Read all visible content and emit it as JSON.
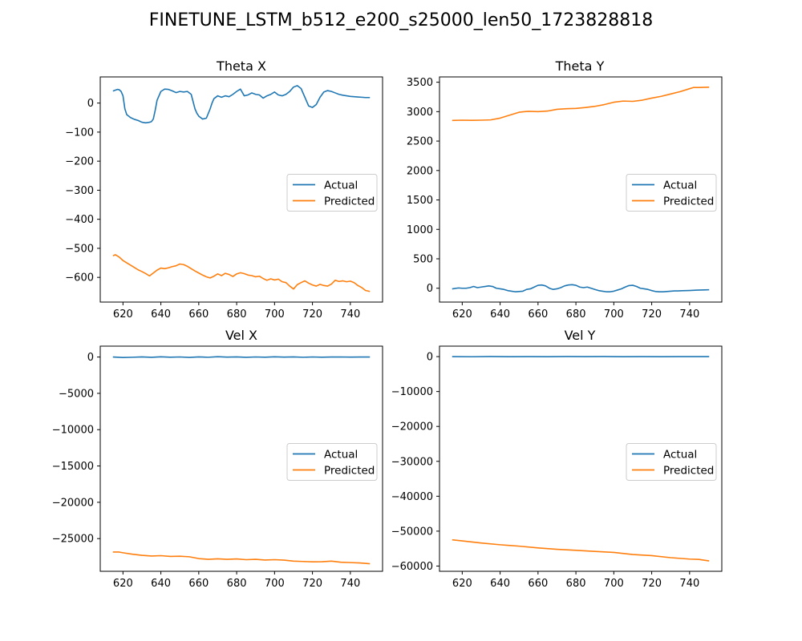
{
  "figure": {
    "suptitle": "FINETUNE_LSTM_b512_e200_s25000_len50_1723828818"
  },
  "colors": {
    "actual": "#1f77b4",
    "predicted": "#ff7f0e",
    "axes": "#000000",
    "legend_border": "#cccccc"
  },
  "chart_data": [
    {
      "type": "line",
      "title": "Theta X",
      "xlim": [
        608,
        757
      ],
      "ylim": [
        -685,
        90
      ],
      "xticks": [
        620,
        640,
        660,
        680,
        700,
        720,
        740
      ],
      "yticks": [
        0,
        -100,
        -200,
        -300,
        -400,
        -500,
        -600
      ],
      "ytick_labels": [
        "0",
        "−100",
        "−200",
        "−300",
        "−400",
        "−500",
        "−600"
      ],
      "legend": {
        "placement": "center-right",
        "entries": [
          "Actual",
          "Predicted"
        ]
      },
      "series": [
        {
          "name": "Actual",
          "x": [
            615,
            617,
            618,
            619,
            620,
            621,
            622,
            624,
            626,
            628,
            630,
            632,
            634,
            635,
            636,
            637,
            638,
            640,
            642,
            644,
            646,
            648,
            650,
            652,
            654,
            656,
            658,
            659,
            660,
            662,
            664,
            666,
            667,
            668,
            670,
            672,
            674,
            676,
            678,
            680,
            682,
            684,
            686,
            688,
            690,
            692,
            694,
            696,
            698,
            700,
            702,
            704,
            706,
            708,
            710,
            712,
            714,
            716,
            718,
            720,
            722,
            724,
            726,
            728,
            730,
            732,
            734,
            736,
            738,
            740,
            742,
            744,
            746,
            748,
            750
          ],
          "y": [
            42,
            47,
            46,
            40,
            25,
            -20,
            -40,
            -50,
            -56,
            -60,
            -66,
            -68,
            -66,
            -64,
            -55,
            -25,
            10,
            40,
            48,
            47,
            42,
            36,
            40,
            38,
            40,
            30,
            -20,
            -35,
            -45,
            -55,
            -52,
            -20,
            0,
            15,
            25,
            20,
            25,
            22,
            30,
            40,
            48,
            25,
            28,
            35,
            30,
            28,
            17,
            25,
            30,
            38,
            28,
            25,
            30,
            40,
            55,
            60,
            50,
            20,
            -10,
            -15,
            -5,
            20,
            38,
            43,
            40,
            35,
            30,
            27,
            25,
            23,
            22,
            21,
            20,
            19,
            19
          ]
        },
        {
          "name": "Predicted",
          "x": [
            615,
            616,
            618,
            620,
            622,
            624,
            626,
            628,
            630,
            632,
            634,
            635,
            636,
            638,
            640,
            642,
            644,
            646,
            648,
            650,
            652,
            654,
            656,
            658,
            660,
            662,
            664,
            666,
            668,
            670,
            672,
            674,
            676,
            678,
            680,
            682,
            684,
            686,
            688,
            690,
            692,
            694,
            696,
            698,
            700,
            702,
            704,
            706,
            708,
            710,
            712,
            714,
            716,
            718,
            720,
            722,
            724,
            726,
            728,
            730,
            732,
            734,
            736,
            738,
            740,
            742,
            744,
            746,
            748,
            750
          ],
          "y": [
            -525,
            -522,
            -530,
            -542,
            -550,
            -558,
            -566,
            -574,
            -580,
            -587,
            -595,
            -590,
            -585,
            -575,
            -568,
            -570,
            -567,
            -563,
            -560,
            -554,
            -556,
            -562,
            -570,
            -578,
            -585,
            -592,
            -598,
            -602,
            -596,
            -588,
            -594,
            -586,
            -590,
            -597,
            -588,
            -584,
            -587,
            -592,
            -594,
            -598,
            -596,
            -604,
            -610,
            -605,
            -609,
            -606,
            -615,
            -618,
            -630,
            -640,
            -625,
            -618,
            -612,
            -620,
            -626,
            -630,
            -624,
            -628,
            -630,
            -623,
            -610,
            -614,
            -612,
            -615,
            -613,
            -618,
            -628,
            -635,
            -645,
            -648
          ]
        }
      ]
    },
    {
      "type": "line",
      "title": "Theta Y",
      "xlim": [
        608,
        757
      ],
      "ylim": [
        -235,
        3590
      ],
      "xticks": [
        620,
        640,
        660,
        680,
        700,
        720,
        740
      ],
      "yticks": [
        0,
        500,
        1000,
        1500,
        2000,
        2500,
        3000,
        3500
      ],
      "ytick_labels": [
        "0",
        "500",
        "1000",
        "1500",
        "2000",
        "2500",
        "3000",
        "3500"
      ],
      "legend": {
        "placement": "center-right",
        "entries": [
          "Actual",
          "Predicted"
        ]
      },
      "series": [
        {
          "name": "Actual",
          "x": [
            615,
            618,
            620,
            622,
            624,
            626,
            628,
            630,
            632,
            634,
            636,
            638,
            640,
            642,
            644,
            646,
            648,
            650,
            652,
            654,
            656,
            658,
            660,
            662,
            664,
            666,
            668,
            670,
            672,
            674,
            676,
            678,
            680,
            682,
            684,
            686,
            688,
            690,
            692,
            694,
            696,
            698,
            700,
            702,
            704,
            706,
            708,
            710,
            712,
            714,
            716,
            718,
            720,
            722,
            724,
            726,
            728,
            730,
            732,
            734,
            736,
            738,
            740,
            742,
            744,
            746,
            748,
            750
          ],
          "y": [
            -10,
            5,
            0,
            0,
            10,
            30,
            10,
            20,
            30,
            40,
            30,
            0,
            -10,
            -20,
            -40,
            -50,
            -60,
            -55,
            -50,
            -20,
            -10,
            20,
            50,
            55,
            40,
            0,
            -20,
            -10,
            10,
            40,
            55,
            60,
            50,
            20,
            10,
            20,
            0,
            -20,
            -40,
            -50,
            -60,
            -60,
            -50,
            -30,
            -10,
            20,
            45,
            50,
            30,
            0,
            -10,
            -20,
            -40,
            -55,
            -60,
            -60,
            -55,
            -50,
            -45,
            -45,
            -42,
            -40,
            -38,
            -35,
            -32,
            -30,
            -28,
            -26
          ]
        },
        {
          "name": "Predicted",
          "x": [
            615,
            620,
            625,
            630,
            635,
            640,
            645,
            650,
            653,
            655,
            660,
            665,
            670,
            675,
            680,
            685,
            690,
            695,
            700,
            705,
            710,
            715,
            720,
            725,
            730,
            735,
            740,
            742,
            745,
            750
          ],
          "y": [
            2850,
            2855,
            2852,
            2855,
            2860,
            2890,
            2940,
            2990,
            3000,
            3005,
            3000,
            3010,
            3040,
            3050,
            3055,
            3070,
            3090,
            3120,
            3160,
            3180,
            3175,
            3195,
            3230,
            3260,
            3300,
            3340,
            3390,
            3410,
            3410,
            3415
          ]
        }
      ]
    },
    {
      "type": "line",
      "title": "Vel X",
      "xlim": [
        608,
        757
      ],
      "ylim": [
        -29500,
        1500
      ],
      "xticks": [
        620,
        640,
        660,
        680,
        700,
        720,
        740
      ],
      "yticks": [
        0,
        -5000,
        -10000,
        -15000,
        -20000,
        -25000
      ],
      "ytick_labels": [
        "0",
        "−5000",
        "−10000",
        "−15000",
        "−20000",
        "−25000"
      ],
      "legend": {
        "placement": "center-right",
        "entries": [
          "Actual",
          "Predicted"
        ]
      },
      "series": [
        {
          "name": "Actual",
          "x": [
            615,
            620,
            625,
            630,
            635,
            640,
            645,
            650,
            655,
            660,
            665,
            670,
            675,
            680,
            685,
            690,
            695,
            700,
            705,
            710,
            715,
            720,
            725,
            730,
            735,
            740,
            745,
            750
          ],
          "y": [
            0,
            -60,
            -30,
            20,
            -40,
            30,
            -20,
            10,
            -50,
            20,
            -30,
            40,
            -10,
            20,
            -40,
            10,
            -20,
            30,
            -10,
            20,
            -30,
            10,
            -20,
            0,
            10,
            -10,
            0,
            0
          ]
        },
        {
          "name": "Predicted",
          "x": [
            615,
            618,
            620,
            625,
            630,
            635,
            640,
            645,
            650,
            655,
            660,
            665,
            670,
            675,
            680,
            685,
            690,
            695,
            700,
            705,
            710,
            715,
            720,
            725,
            730,
            735,
            740,
            745,
            750
          ],
          "y": [
            -26850,
            -26850,
            -26950,
            -27150,
            -27300,
            -27400,
            -27350,
            -27450,
            -27420,
            -27500,
            -27750,
            -27850,
            -27780,
            -27850,
            -27800,
            -27900,
            -27850,
            -27950,
            -27900,
            -27960,
            -28100,
            -28150,
            -28200,
            -28180,
            -28100,
            -28250,
            -28300,
            -28350,
            -28450
          ]
        }
      ]
    },
    {
      "type": "line",
      "title": "Vel Y",
      "xlim": [
        608,
        757
      ],
      "ylim": [
        -61500,
        3000
      ],
      "xticks": [
        620,
        640,
        660,
        680,
        700,
        720,
        740
      ],
      "yticks": [
        0,
        -10000,
        -20000,
        -30000,
        -40000,
        -50000,
        -60000
      ],
      "ytick_labels": [
        "0",
        "−10000",
        "−20000",
        "−30000",
        "−40000",
        "−50000",
        "−60000"
      ],
      "legend": {
        "placement": "center-right",
        "entries": [
          "Actual",
          "Predicted"
        ]
      },
      "series": [
        {
          "name": "Actual",
          "x": [
            615,
            625,
            635,
            645,
            655,
            665,
            675,
            685,
            695,
            705,
            715,
            725,
            735,
            745,
            750
          ],
          "y": [
            0,
            -40,
            20,
            -30,
            10,
            -20,
            30,
            -10,
            20,
            -30,
            10,
            -20,
            10,
            0,
            0
          ]
        },
        {
          "name": "Predicted",
          "x": [
            615,
            620,
            630,
            640,
            650,
            660,
            670,
            680,
            690,
            700,
            710,
            720,
            730,
            740,
            745,
            750
          ],
          "y": [
            -52500,
            -52800,
            -53400,
            -53900,
            -54300,
            -54800,
            -55200,
            -55500,
            -55800,
            -56100,
            -56700,
            -57000,
            -57600,
            -58000,
            -58100,
            -58500
          ]
        }
      ]
    }
  ]
}
